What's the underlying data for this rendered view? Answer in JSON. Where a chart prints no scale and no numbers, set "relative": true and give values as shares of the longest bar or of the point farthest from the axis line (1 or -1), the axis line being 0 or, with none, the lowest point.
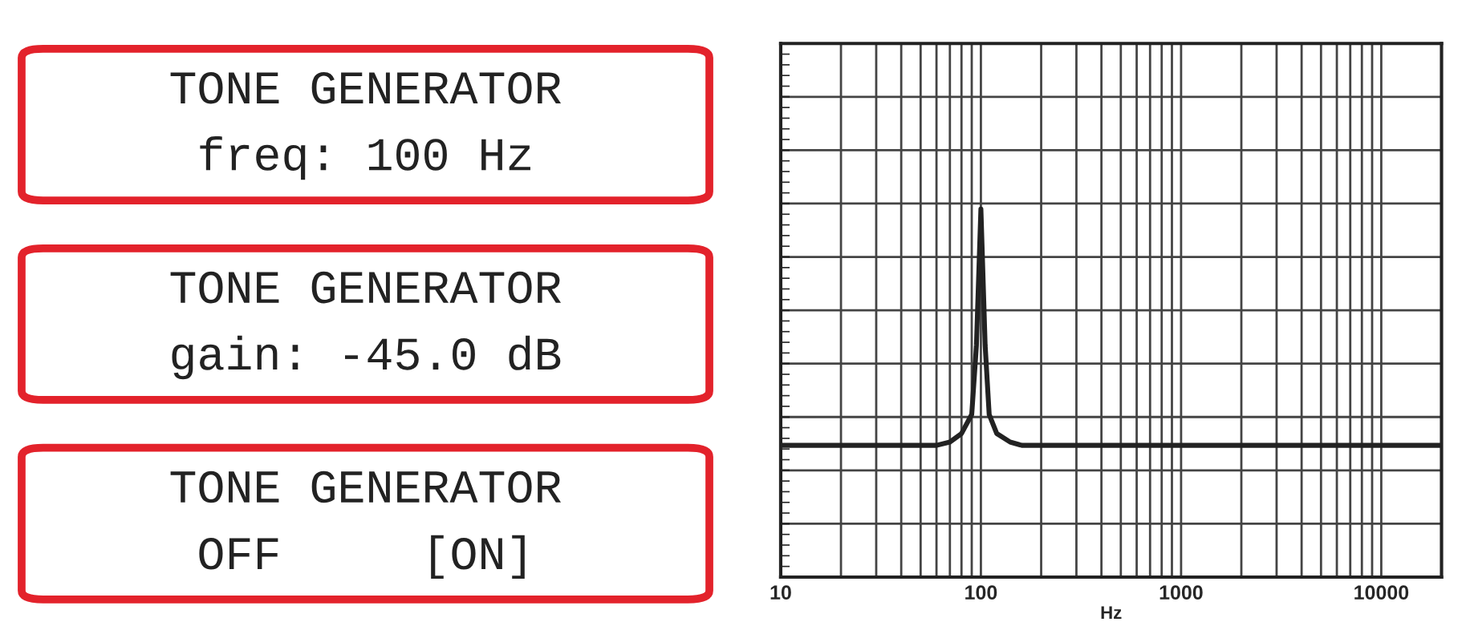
{
  "chart_data": [
    {
      "type": "other",
      "annotations": [
        "TONE GENERATOR",
        "freq: 100 Hz",
        "TONE GENERATOR",
        "gain: -45.0 dB",
        "TONE GENERATOR",
        "OFF     [ON]"
      ]
    },
    {
      "type": "line",
      "relative": true,
      "xlabel": "Hz",
      "log": "x",
      "grid": true,
      "tick_labels": "x",
      "xlim": [
        10,
        20000
      ],
      "xticks": [
        10,
        100,
        1000,
        10000
      ],
      "series": [
        {
          "color": "#222222",
          "x": [
            10,
            60,
            70,
            80,
            90,
            95,
            100,
            105,
            110,
            120,
            140,
            160,
            20000
          ],
          "values": [
            0.358,
            0.358,
            0.367,
            0.39,
            0.442,
            0.63,
            1.0,
            0.63,
            0.442,
            0.39,
            0.367,
            0.358,
            0.358
          ]
        }
      ]
    }
  ]
}
